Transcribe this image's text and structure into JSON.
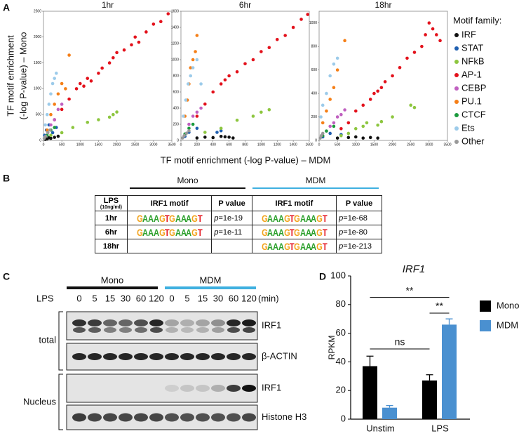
{
  "panel_labels": [
    "A",
    "B",
    "C",
    "D"
  ],
  "panel_a": {
    "x_label": "TF motif enrichment (-log P-value) – MDM",
    "y_label_lines": [
      "TF motif enrichment",
      "(-log P-value) – Mono"
    ],
    "legend_title": "Motif family:"
  },
  "chart_data": [
    {
      "type": "scatter",
      "title": "1hr",
      "xlim": [
        0,
        3500
      ],
      "ylim": [
        0,
        2500
      ],
      "xticks": [
        0,
        500,
        1000,
        1500,
        2000,
        2500,
        3000,
        3500
      ],
      "yticks": [
        0,
        500,
        1000,
        1500,
        2000,
        2500
      ],
      "series": [
        {
          "name": "IRF",
          "color": "#111111",
          "x": [
            50,
            100,
            150,
            200,
            300,
            400
          ],
          "values": [
            20,
            30,
            50,
            40,
            60,
            80
          ]
        },
        {
          "name": "STAT",
          "color": "#1f5fb0",
          "x": [
            30,
            80,
            150,
            250,
            350
          ],
          "values": [
            100,
            200,
            300,
            150,
            250
          ]
        },
        {
          "name": "NFkB",
          "color": "#8dc63f",
          "x": [
            200,
            500,
            800,
            1200,
            1500,
            1800,
            1900,
            2000
          ],
          "values": [
            100,
            150,
            250,
            350,
            400,
            450,
            500,
            550
          ]
        },
        {
          "name": "AP-1",
          "color": "#e3111b",
          "x": [
            300,
            500,
            700,
            900,
            1000,
            1100,
            1200,
            1300,
            1500,
            1600,
            1800,
            1900,
            2000,
            2200,
            2400,
            2500,
            2600,
            2800,
            3000,
            3200,
            3400
          ],
          "values": [
            400,
            600,
            800,
            1000,
            1100,
            1050,
            1200,
            1150,
            1300,
            1400,
            1500,
            1600,
            1700,
            1750,
            1850,
            2000,
            1900,
            2100,
            2250,
            2300,
            2450
          ]
        },
        {
          "name": "CEBP",
          "color": "#c060c0",
          "x": [
            200,
            300,
            400,
            500
          ],
          "values": [
            300,
            400,
            600,
            700
          ]
        },
        {
          "name": "PU.1",
          "color": "#f57f17",
          "x": [
            100,
            200,
            300,
            400,
            500,
            600,
            700
          ],
          "values": [
            200,
            500,
            700,
            900,
            1100,
            1000,
            1650
          ]
        },
        {
          "name": "CTCF",
          "color": "#1a9a3c",
          "x": [
            100,
            200,
            300
          ],
          "values": [
            100,
            200,
            250
          ]
        },
        {
          "name": "Ets",
          "color": "#9ccbea",
          "x": [
            50,
            100,
            150,
            200,
            250,
            300,
            350
          ],
          "values": [
            300,
            500,
            700,
            900,
            1100,
            1200,
            1300
          ]
        },
        {
          "name": "Other",
          "color": "#999999",
          "x": [
            20,
            60,
            120,
            180
          ],
          "values": [
            40,
            80,
            150,
            200
          ]
        }
      ]
    },
    {
      "type": "scatter",
      "title": "6hr",
      "xlim": [
        0,
        1600
      ],
      "ylim": [
        0,
        1600
      ],
      "xticks": [
        0,
        200,
        400,
        600,
        800,
        1000,
        1200,
        1400,
        1600
      ],
      "yticks": [
        0,
        200,
        400,
        600,
        800,
        1000,
        1200,
        1400,
        1600
      ],
      "series": [
        {
          "name": "IRF",
          "color": "#111111",
          "x": [
            200,
            300,
            400,
            500,
            550,
            600,
            650
          ],
          "values": [
            30,
            40,
            35,
            50,
            45,
            40,
            30
          ]
        },
        {
          "name": "STAT",
          "color": "#1f5fb0",
          "x": [
            50,
            100,
            200,
            450,
            500
          ],
          "values": [
            50,
            100,
            150,
            100,
            120
          ]
        },
        {
          "name": "NFkB",
          "color": "#8dc63f",
          "x": [
            300,
            500,
            700,
            900,
            1000,
            1100
          ],
          "values": [
            100,
            150,
            250,
            300,
            350,
            380
          ]
        },
        {
          "name": "AP-1",
          "color": "#e3111b",
          "x": [
            200,
            300,
            400,
            500,
            550,
            600,
            700,
            800,
            900,
            1000,
            1100,
            1200,
            1300,
            1400,
            1500,
            1580
          ],
          "values": [
            300,
            450,
            600,
            700,
            750,
            800,
            850,
            950,
            1000,
            1100,
            1150,
            1250,
            1300,
            1400,
            1500,
            1560
          ]
        },
        {
          "name": "CEBP",
          "color": "#c060c0",
          "x": [
            100,
            150,
            200,
            250
          ],
          "values": [
            200,
            300,
            350,
            400
          ]
        },
        {
          "name": "PU.1",
          "color": "#f57f17",
          "x": [
            50,
            80,
            100,
            120,
            150,
            180,
            200
          ],
          "values": [
            300,
            500,
            700,
            900,
            1000,
            1100,
            1300
          ]
        },
        {
          "name": "CTCF",
          "color": "#1a9a3c",
          "x": [
            50,
            100,
            150
          ],
          "values": [
            80,
            150,
            200
          ]
        },
        {
          "name": "Ets",
          "color": "#9ccbea",
          "x": [
            30,
            60,
            90,
            120,
            150,
            200,
            250
          ],
          "values": [
            300,
            500,
            700,
            800,
            900,
            1000,
            700
          ]
        },
        {
          "name": "Other",
          "color": "#999999",
          "x": [
            20,
            40,
            70,
            100
          ],
          "values": [
            30,
            60,
            90,
            120
          ]
        }
      ]
    },
    {
      "type": "scatter",
      "title": "18hr",
      "xlim": [
        0,
        3500
      ],
      "ylim": [
        0,
        1100
      ],
      "xticks": [
        0,
        500,
        1000,
        1500,
        2000,
        2500,
        3000,
        3500
      ],
      "yticks": [
        0,
        200,
        400,
        600,
        800,
        1000
      ],
      "series": [
        {
          "name": "IRF",
          "color": "#111111",
          "x": [
            500,
            800,
            1000,
            1200,
            1400,
            1600
          ],
          "values": [
            20,
            25,
            30,
            20,
            25,
            20
          ]
        },
        {
          "name": "STAT",
          "color": "#1f5fb0",
          "x": [
            100,
            300,
            600
          ],
          "values": [
            30,
            60,
            50
          ]
        },
        {
          "name": "NFkB",
          "color": "#8dc63f",
          "x": [
            600,
            800,
            1000,
            1200,
            1300,
            1600,
            1700,
            2000,
            2500,
            2600
          ],
          "values": [
            40,
            60,
            100,
            120,
            150,
            130,
            160,
            200,
            300,
            280
          ]
        },
        {
          "name": "AP-1",
          "color": "#e3111b",
          "x": [
            600,
            800,
            1000,
            1200,
            1400,
            1500,
            1600,
            1700,
            1800,
            2000,
            2200,
            2400,
            2600,
            2800,
            2900,
            3000,
            3100,
            3200,
            3300
          ],
          "values": [
            100,
            150,
            250,
            300,
            350,
            400,
            420,
            450,
            500,
            550,
            620,
            700,
            750,
            800,
            900,
            1000,
            950,
            900,
            850
          ]
        },
        {
          "name": "CEBP",
          "color": "#c060c0",
          "x": [
            200,
            300,
            400,
            500,
            600,
            700
          ],
          "values": [
            80,
            120,
            150,
            200,
            220,
            260
          ]
        },
        {
          "name": "PU.1",
          "color": "#f57f17",
          "x": [
            100,
            200,
            300,
            400,
            500,
            700
          ],
          "values": [
            150,
            250,
            350,
            450,
            600,
            850
          ]
        },
        {
          "name": "CTCF",
          "color": "#1a9a3c",
          "x": [
            100,
            200,
            400
          ],
          "values": [
            40,
            80,
            120
          ]
        },
        {
          "name": "Ets",
          "color": "#9ccbea",
          "x": [
            50,
            100,
            200,
            300,
            400,
            500
          ],
          "values": [
            200,
            300,
            400,
            550,
            650,
            700
          ]
        },
        {
          "name": "Other",
          "color": "#999999",
          "x": [
            30,
            60,
            100
          ],
          "values": [
            20,
            40,
            60
          ]
        }
      ]
    },
    {
      "type": "bar",
      "title": "IRF1",
      "y_label": "RPKM",
      "categories": [
        "Unstim",
        "LPS"
      ],
      "ylim": [
        0,
        100
      ],
      "yticks": [
        0,
        20,
        40,
        60,
        80,
        100
      ],
      "series": [
        {
          "name": "Mono",
          "color": "#000000",
          "values": [
            37,
            27
          ],
          "errors": [
            7,
            4
          ]
        },
        {
          "name": "MDM",
          "color": "#4a90d0",
          "values": [
            8,
            66
          ],
          "errors": [
            1.5,
            4
          ]
        }
      ],
      "significance": [
        "ns",
        "**",
        "**"
      ]
    }
  ],
  "table": {
    "groups": [
      "Mono",
      "MDM"
    ],
    "header": [
      "LPS",
      "IRF1 motif",
      "P value",
      "IRF1 motif",
      "P value"
    ],
    "header_note": "(10ng/ml)",
    "rows": [
      [
        "1hr",
        "GAAAGTGAAAGT",
        "p=1e-19",
        "GAAAGTGAAAGT",
        "p=1e-68"
      ],
      [
        "6hr",
        "GAAAGTGAAAGT",
        "p=1e-11",
        "GAAAGTGAAAGT",
        "p=1e-80"
      ],
      [
        "18hr",
        null,
        null,
        "GAAAGTGAAAGT",
        "p=1e-213"
      ]
    ]
  },
  "blot": {
    "groups": [
      "Mono",
      "MDM"
    ],
    "treatment": "LPS",
    "lanes": [
      0,
      5,
      15,
      30,
      60,
      120,
      0,
      5,
      15,
      30,
      60,
      120
    ],
    "unit": "(min)",
    "rows": [
      "IRF1",
      "β-ACTIN",
      "IRF1",
      "Histone H3"
    ],
    "fractions": [
      "total",
      "Nucleus"
    ]
  }
}
